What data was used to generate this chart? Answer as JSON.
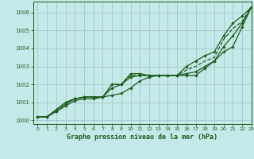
{
  "title": "Graphe pression niveau de la mer (hPa)",
  "bg_color": "#c5e8e8",
  "grid_color": "#aacccc",
  "line_color": "#1a5c1a",
  "ylim": [
    999.8,
    1006.6
  ],
  "xlim": [
    -0.5,
    23
  ],
  "yticks": [
    1000,
    1001,
    1002,
    1003,
    1004,
    1005,
    1006
  ],
  "xticks": [
    0,
    1,
    2,
    3,
    4,
    5,
    6,
    7,
    8,
    9,
    10,
    11,
    12,
    13,
    14,
    15,
    16,
    17,
    18,
    19,
    20,
    21,
    22,
    23
  ],
  "series": [
    {
      "data": [
        1000.2,
        1000.2,
        1000.5,
        1000.8,
        1001.1,
        1001.2,
        1001.2,
        1001.3,
        1001.4,
        1001.5,
        1001.8,
        1002.2,
        1002.4,
        1002.5,
        1002.5,
        1002.5,
        1002.5,
        1002.5,
        1002.9,
        1003.3,
        1004.1,
        1004.7,
        1005.4,
        1006.3
      ],
      "style": "-",
      "marker": true,
      "lw": 0.9
    },
    {
      "data": [
        1000.2,
        1000.2,
        1000.5,
        1000.9,
        1001.2,
        1001.3,
        1001.3,
        1001.3,
        1001.8,
        1002.0,
        1002.4,
        1002.5,
        1002.5,
        1002.5,
        1002.5,
        1002.5,
        1002.6,
        1002.7,
        1003.0,
        1003.3,
        1003.8,
        1004.1,
        1005.2,
        1006.3
      ],
      "style": "-",
      "marker": true,
      "lw": 0.9
    },
    {
      "data": [
        1000.2,
        1000.2,
        1000.6,
        1001.0,
        1001.2,
        1001.3,
        1001.3,
        1001.3,
        1002.0,
        1002.0,
        1002.5,
        1002.5,
        1002.5,
        1002.5,
        1002.5,
        1002.5,
        1002.8,
        1003.0,
        1003.3,
        1003.5,
        1004.5,
        1005.1,
        1005.5,
        1006.3
      ],
      "style": "--",
      "marker": false,
      "lw": 0.9
    },
    {
      "data": [
        1000.2,
        1000.2,
        1000.6,
        1001.0,
        1001.2,
        1001.3,
        1001.3,
        1001.3,
        1002.0,
        1002.0,
        1002.6,
        1002.6,
        1002.5,
        1002.5,
        1002.5,
        1002.5,
        1003.0,
        1003.3,
        1003.6,
        1003.8,
        1004.7,
        1005.4,
        1005.8,
        1006.3
      ],
      "style": "-",
      "marker": true,
      "lw": 0.9
    }
  ]
}
